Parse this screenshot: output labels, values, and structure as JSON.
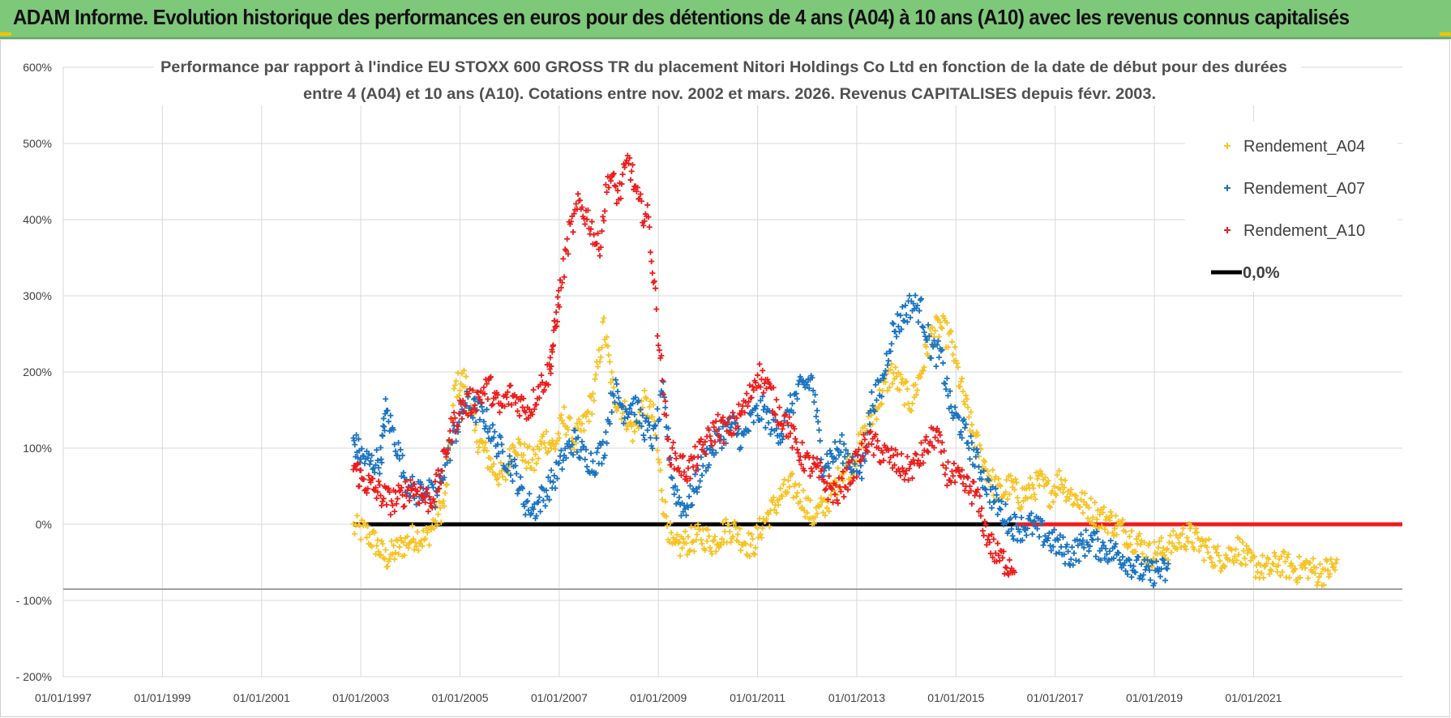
{
  "header": {
    "banner_title": "ADAM Informe. Evolution historique des performances en euros pour des détentions de 4 ans (A04) à 10 ans (A10) avec les revenus connus capitalisés"
  },
  "colors": {
    "banner_bg": "#7ec87a",
    "a04": "#f7c325",
    "a07": "#1a73c2",
    "a10": "#ee1c1c",
    "zero_line": "#000000",
    "grid": "#d9d9d9"
  },
  "chart_data": {
    "type": "scatter",
    "title_line1": "Performance par rapport à l'indice EU STOXX 600 GROSS TR  du placement Nitori Holdings Co Ltd en fonction de la date de début pour des durées",
    "title_line2": "entre 4 (A04) et 10 ans (A10). Cotations entre nov. 2002 et mars. 2026. Revenus CAPITALISES depuis févr. 2003.",
    "xlabel": "",
    "ylabel": "",
    "xlim": [
      1997.0,
      2024.0
    ],
    "ylim": [
      -200,
      600
    ],
    "y_ticks": [
      {
        "value": 600,
        "label": "600%"
      },
      {
        "value": 500,
        "label": "500%"
      },
      {
        "value": 400,
        "label": "400%"
      },
      {
        "value": 300,
        "label": "300%"
      },
      {
        "value": 200,
        "label": "200%"
      },
      {
        "value": 100,
        "label": "100%"
      },
      {
        "value": 0,
        "label": "0%"
      },
      {
        "value": -100,
        "label": "- 100%"
      },
      {
        "value": -200,
        "label": "- 200%"
      }
    ],
    "x_ticks": [
      {
        "value": 1997.0,
        "label": "01/01/1997"
      },
      {
        "value": 1999.0,
        "label": "01/01/1999"
      },
      {
        "value": 2001.0,
        "label": "01/01/2001"
      },
      {
        "value": 2003.0,
        "label": "01/01/2003"
      },
      {
        "value": 2005.0,
        "label": "01/01/2005"
      },
      {
        "value": 2007.0,
        "label": "01/01/2007"
      },
      {
        "value": 2009.0,
        "label": "01/01/2009"
      },
      {
        "value": 2011.0,
        "label": "01/01/2011"
      },
      {
        "value": 2013.0,
        "label": "01/01/2013"
      },
      {
        "value": 2015.0,
        "label": "01/01/2015"
      },
      {
        "value": 2017.0,
        "label": "01/01/2017"
      },
      {
        "value": 2019.0,
        "label": "01/01/2019"
      },
      {
        "value": 2021.0,
        "label": "01/01/2021"
      }
    ],
    "legend_position": "top-right",
    "series": [
      {
        "name": "Rendement_A04",
        "color": "#f7c325",
        "x": [
          2002.85,
          2003.1,
          2003.3,
          2003.5,
          2003.7,
          2003.9,
          2004.1,
          2004.3,
          2004.5,
          2004.7,
          2004.9,
          2005.1,
          2005.3,
          2005.5,
          2005.7,
          2005.9,
          2006.1,
          2006.3,
          2006.5,
          2006.7,
          2006.9,
          2007.1,
          2007.3,
          2007.5,
          2007.7,
          2007.9,
          2008.1,
          2008.3,
          2008.5,
          2008.7,
          2008.9,
          2009.1,
          2009.3,
          2009.5,
          2009.7,
          2009.9,
          2010.1,
          2010.3,
          2010.5,
          2010.7,
          2010.9,
          2011.1,
          2011.3,
          2011.5,
          2011.7,
          2011.9,
          2012.1,
          2012.3,
          2012.5,
          2012.7,
          2012.9,
          2013.1,
          2013.3,
          2013.5,
          2013.7,
          2013.9,
          2014.1,
          2014.3,
          2014.5,
          2014.7,
          2014.9,
          2015.1,
          2015.3,
          2015.5,
          2015.7,
          2015.9,
          2016.1,
          2016.3,
          2016.5,
          2016.7,
          2016.9,
          2017.1,
          2017.3,
          2017.5,
          2017.7,
          2017.9,
          2018.1,
          2018.3,
          2018.5,
          2018.7,
          2018.9,
          2019.1,
          2019.3,
          2019.5,
          2019.7,
          2019.9,
          2020.1,
          2020.3,
          2020.5,
          2020.7,
          2020.9,
          2021.1,
          2021.3,
          2021.5,
          2021.7,
          2021.9,
          2022.1,
          2022.3,
          2022.5,
          2022.7
        ],
        "y": [
          -5,
          -10,
          -25,
          -45,
          -35,
          -25,
          -15,
          -20,
          5,
          30,
          180,
          190,
          120,
          95,
          70,
          60,
          110,
          90,
          80,
          115,
          100,
          140,
          110,
          130,
          170,
          260,
          170,
          150,
          120,
          160,
          140,
          30,
          -35,
          -25,
          -20,
          -15,
          -25,
          -10,
          -5,
          -20,
          -30,
          0,
          20,
          40,
          50,
          35,
          10,
          20,
          40,
          70,
          80,
          110,
          140,
          170,
          200,
          180,
          160,
          200,
          250,
          260,
          240,
          180,
          130,
          90,
          60,
          40,
          50,
          35,
          45,
          55,
          40,
          60,
          40,
          30,
          20,
          10,
          5,
          -5,
          -15,
          -25,
          -40,
          -35,
          -30,
          -20,
          -15,
          -25,
          -35,
          -45,
          -40,
          -30,
          -50,
          -55,
          -60,
          -50,
          -55,
          -60,
          -55,
          -65,
          -60,
          -55
        ]
      },
      {
        "name": "Rendement_A07",
        "color": "#1a73c2",
        "x": [
          2002.85,
          2003.0,
          2003.2,
          2003.4,
          2003.5,
          2003.7,
          2003.9,
          2004.1,
          2004.3,
          2004.5,
          2004.7,
          2004.9,
          2005.1,
          2005.3,
          2005.5,
          2005.7,
          2005.9,
          2006.1,
          2006.3,
          2006.5,
          2006.7,
          2006.9,
          2007.1,
          2007.3,
          2007.5,
          2007.7,
          2007.9,
          2008.1,
          2008.3,
          2008.5,
          2008.7,
          2008.9,
          2009.1,
          2009.3,
          2009.5,
          2009.7,
          2009.9,
          2010.1,
          2010.3,
          2010.5,
          2010.7,
          2010.9,
          2011.1,
          2011.3,
          2011.5,
          2011.7,
          2011.9,
          2012.1,
          2012.3,
          2012.5,
          2012.7,
          2012.9,
          2013.1,
          2013.3,
          2013.5,
          2013.7,
          2013.9,
          2014.1,
          2014.3,
          2014.5,
          2014.7,
          2014.9,
          2015.1,
          2015.3,
          2015.5,
          2015.7,
          2015.9,
          2016.1,
          2016.3,
          2016.5,
          2016.7,
          2016.9,
          2017.1,
          2017.3,
          2017.5,
          2017.7,
          2017.9,
          2018.1,
          2018.3,
          2018.5,
          2018.7,
          2018.9,
          2019.1,
          2019.3
        ],
        "y": [
          110,
          90,
          80,
          85,
          150,
          110,
          60,
          40,
          50,
          30,
          80,
          120,
          160,
          150,
          140,
          110,
          90,
          70,
          30,
          20,
          40,
          60,
          90,
          110,
          90,
          80,
          100,
          180,
          150,
          160,
          130,
          110,
          170,
          50,
          20,
          40,
          80,
          100,
          120,
          130,
          110,
          140,
          150,
          130,
          120,
          160,
          180,
          190,
          80,
          90,
          100,
          80,
          70,
          160,
          180,
          250,
          270,
          290,
          280,
          230,
          220,
          150,
          130,
          100,
          70,
          40,
          20,
          0,
          -5,
          0,
          -10,
          -20,
          -30,
          -40,
          -30,
          -20,
          -30,
          -35,
          -40,
          -50,
          -60,
          -65,
          -60,
          -65
        ]
      },
      {
        "name": "Rendement_A10",
        "color": "#ee1c1c",
        "x": [
          2002.85,
          2003.0,
          2003.2,
          2003.4,
          2003.6,
          2003.8,
          2004.0,
          2004.2,
          2004.4,
          2004.6,
          2004.8,
          2005.0,
          2005.2,
          2005.4,
          2005.6,
          2005.8,
          2006.0,
          2006.2,
          2006.4,
          2006.6,
          2006.8,
          2006.9,
          2007.0,
          2007.2,
          2007.4,
          2007.6,
          2007.8,
          2008.0,
          2008.2,
          2008.4,
          2008.6,
          2008.8,
          2009.0,
          2009.2,
          2009.4,
          2009.6,
          2009.8,
          2010.0,
          2010.2,
          2010.4,
          2010.6,
          2010.8,
          2011.0,
          2011.2,
          2011.4,
          2011.6,
          2011.8,
          2012.0,
          2012.2,
          2012.4,
          2012.6,
          2012.8,
          2013.0,
          2013.2,
          2013.4,
          2013.6,
          2013.8,
          2014.0,
          2014.2,
          2014.4,
          2014.6,
          2014.8,
          2015.0,
          2015.2,
          2015.4,
          2015.6,
          2015.8,
          2016.0,
          2016.2
        ],
        "y": [
          80,
          60,
          50,
          40,
          30,
          35,
          50,
          40,
          30,
          60,
          120,
          150,
          160,
          170,
          180,
          150,
          170,
          160,
          150,
          180,
          200,
          250,
          300,
          380,
          420,
          400,
          360,
          460,
          430,
          480,
          420,
          400,
          250,
          100,
          80,
          70,
          90,
          110,
          130,
          120,
          140,
          160,
          200,
          180,
          150,
          130,
          100,
          80,
          70,
          50,
          40,
          60,
          80,
          110,
          100,
          90,
          80,
          70,
          80,
          100,
          120,
          70,
          60,
          50,
          40,
          -10,
          -40,
          -50,
          -55
        ]
      }
    ],
    "reference_lines": [
      {
        "name": "0,0%",
        "y": 0,
        "color": "#000000",
        "x_start": 2002.85,
        "x_end": 2016.2
      },
      {
        "name": "A10-zero-band",
        "y": 0,
        "color": "#ee1c1c",
        "x_start": 2016.2,
        "x_end": 2024.0
      }
    ],
    "legend": [
      {
        "label": "Rendement_A04",
        "color": "#f7c325",
        "marker": "cross"
      },
      {
        "label": "Rendement_A07",
        "color": "#1a73c2",
        "marker": "cross"
      },
      {
        "label": "Rendement_A10",
        "color": "#ee1c1c",
        "marker": "cross"
      },
      {
        "label": "0,0%",
        "color": "#000000",
        "marker": "line"
      }
    ]
  }
}
